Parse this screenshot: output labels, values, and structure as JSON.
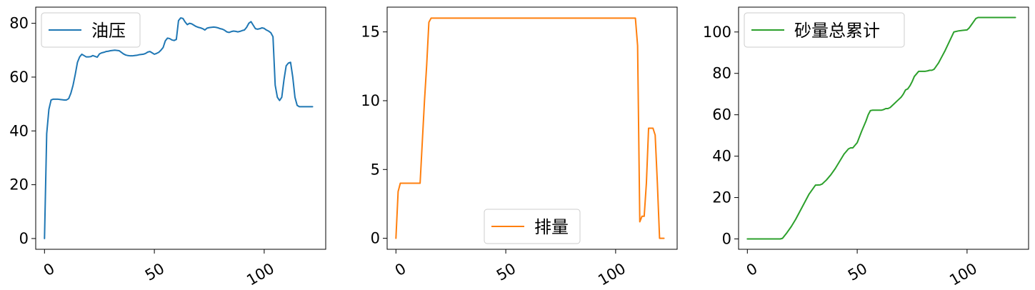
{
  "chart_data": [
    {
      "type": "line",
      "legend_placement": "top-left",
      "grid": false,
      "xlim": [
        -4,
        128
      ],
      "ylim": [
        -4,
        86
      ],
      "xticks": [
        0,
        50,
        100
      ],
      "yticks": [
        0,
        20,
        40,
        60,
        80
      ],
      "series": [
        {
          "name": "油压",
          "color": "#1f77b4",
          "x": [
            0,
            1,
            2,
            3,
            4,
            5,
            6,
            7,
            8,
            9,
            10,
            11,
            12,
            13,
            14,
            15,
            16,
            17,
            18,
            19,
            20,
            21,
            22,
            23,
            24,
            25,
            26,
            27,
            28,
            29,
            30,
            31,
            32,
            33,
            34,
            35,
            36,
            37,
            38,
            39,
            40,
            41,
            42,
            43,
            44,
            45,
            46,
            47,
            48,
            49,
            50,
            51,
            52,
            53,
            54,
            55,
            56,
            57,
            58,
            59,
            60,
            61,
            62,
            63,
            64,
            65,
            66,
            67,
            68,
            69,
            70,
            71,
            72,
            73,
            74,
            75,
            76,
            77,
            78,
            79,
            80,
            81,
            82,
            83,
            84,
            85,
            86,
            87,
            88,
            89,
            90,
            91,
            92,
            93,
            94,
            95,
            96,
            97,
            98,
            99,
            100,
            101,
            102,
            103,
            104,
            105,
            106,
            107,
            108,
            109,
            110,
            111,
            112,
            113,
            114,
            115,
            116,
            117,
            118,
            119,
            120,
            121,
            122
          ],
          "y": [
            0,
            39,
            48,
            51.5,
            51.8,
            51.8,
            51.8,
            51.7,
            51.6,
            51.5,
            51.5,
            52,
            54,
            57,
            61,
            65.5,
            67.5,
            68.5,
            68,
            67.5,
            67.5,
            67.6,
            68,
            67.7,
            67.4,
            68.6,
            69,
            69.2,
            69.5,
            69.6,
            69.8,
            69.9,
            70,
            69.9,
            69.8,
            69.2,
            68.6,
            68.2,
            68,
            67.9,
            67.9,
            68,
            68.1,
            68.3,
            68.4,
            68.5,
            68.8,
            69.3,
            69.5,
            69,
            68.5,
            68.8,
            69.2,
            70,
            71,
            73.5,
            74.5,
            74.3,
            73.8,
            73.6,
            74,
            81,
            82,
            81.8,
            80.5,
            79.5,
            80,
            79.8,
            79.3,
            78.8,
            78.5,
            78.3,
            78,
            77.5,
            78.2,
            78.4,
            78.5,
            78.6,
            78.5,
            78.3,
            78,
            77.8,
            77.4,
            76.8,
            76.6,
            76.9,
            77.1,
            77,
            76.8,
            77,
            77.3,
            77.5,
            78.5,
            80,
            80.6,
            79.3,
            78,
            77.8,
            78,
            78.3,
            78.1,
            77.5,
            77.1,
            76.5,
            75,
            57,
            52.5,
            51.3,
            52.5,
            59,
            64.2,
            65.2,
            65.5,
            60,
            52.5,
            49.5,
            49,
            49,
            49,
            49,
            49,
            49,
            49
          ]
        }
      ]
    },
    {
      "type": "line",
      "legend_placement": "lower-center",
      "grid": false,
      "xlim": [
        -4,
        128
      ],
      "ylim": [
        -0.8,
        16.8
      ],
      "xticks": [
        0,
        50,
        100
      ],
      "yticks": [
        0,
        5,
        10,
        15
      ],
      "series": [
        {
          "name": "排量",
          "color": "#ff7f0e",
          "x": [
            0,
            1,
            2,
            3,
            4,
            5,
            6,
            7,
            8,
            9,
            10,
            11,
            12,
            13,
            14,
            15,
            16,
            17,
            18,
            20,
            30,
            40,
            50,
            60,
            70,
            80,
            90,
            100,
            108,
            109,
            110,
            111,
            112,
            113,
            114,
            115,
            116,
            117,
            118,
            119,
            120,
            121,
            122
          ],
          "y": [
            0,
            3.4,
            4,
            4,
            4,
            4,
            4,
            4,
            4,
            4,
            4,
            4,
            7,
            10,
            12.6,
            15.7,
            16,
            16,
            16,
            16,
            16,
            16,
            16,
            16,
            16,
            16,
            16,
            16,
            16,
            16,
            14,
            1.2,
            1.6,
            1.6,
            4,
            8,
            8,
            8,
            7.5,
            4,
            0,
            0,
            0
          ]
        }
      ]
    },
    {
      "type": "line",
      "legend_placement": "top-left",
      "grid": false,
      "xlim": [
        -4,
        128
      ],
      "ylim": [
        -5,
        112
      ],
      "xticks": [
        0,
        50,
        100
      ],
      "yticks": [
        0,
        20,
        40,
        60,
        80,
        100
      ],
      "series": [
        {
          "name": "砂量总累计",
          "color": "#2ca02c",
          "x": [
            0,
            5,
            10,
            15,
            16,
            18,
            20,
            22,
            25,
            28,
            31,
            33,
            34,
            35,
            36,
            38,
            40,
            42,
            44,
            46,
            47,
            48,
            50,
            52,
            54,
            55,
            56,
            57,
            58,
            60,
            61,
            62,
            63,
            64,
            65,
            66,
            67,
            68,
            69,
            70,
            71,
            72,
            73,
            74,
            75,
            76,
            78,
            80,
            81,
            82,
            83,
            84,
            85,
            86,
            87,
            88,
            90,
            92,
            94,
            96,
            98,
            100,
            101,
            102,
            103,
            104,
            105,
            106,
            107,
            108,
            110,
            120,
            122
          ],
          "y": [
            0,
            0,
            0,
            0,
            0.3,
            3,
            6,
            9.5,
            15.5,
            21.5,
            26,
            26.1,
            26.5,
            27.5,
            28.5,
            31,
            34,
            37.5,
            41,
            43.5,
            44,
            44,
            46.5,
            52,
            57,
            60,
            62,
            62.2,
            62.2,
            62.2,
            62.2,
            62.5,
            63,
            63,
            63.5,
            64.5,
            65.5,
            66.5,
            67.5,
            68.5,
            70,
            72,
            72.5,
            74,
            76,
            78.5,
            81,
            81,
            81,
            81.2,
            81.5,
            81.5,
            82,
            83.5,
            85,
            87,
            91,
            95.5,
            100,
            100.5,
            100.8,
            101,
            102,
            103.5,
            105,
            106.5,
            107,
            107,
            107,
            107,
            107,
            107,
            107
          ]
        }
      ]
    }
  ]
}
